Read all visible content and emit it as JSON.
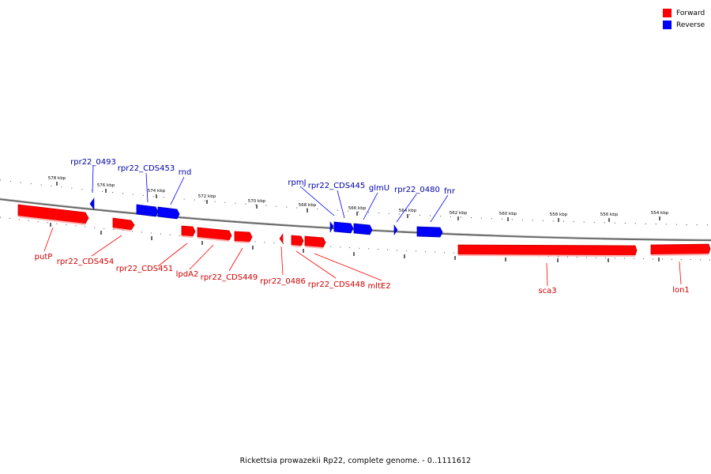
{
  "legend": {
    "items": [
      {
        "label": "Forward",
        "color": "#ff0000"
      },
      {
        "label": "Reverse",
        "color": "#0000ff"
      }
    ]
  },
  "footer": "Rickettsia prowazekii Rp22, complete genome. - 0..1111612",
  "colors": {
    "forward": "#ff0000",
    "forward_dark": "#c80000",
    "forward_shadow": "#ffb3b3",
    "reverse": "#0000ff",
    "reverse_dark": "#0000b0",
    "backbone": "#666666"
  },
  "scale_labels": [
    "578 kbp",
    "576 kbp",
    "574 kbp",
    "572 kbp",
    "570 kbp",
    "568 kbp",
    "566 kbp",
    "564 kbp",
    "562 kbp",
    "560 kbp",
    "558 kbp",
    "556 kbp",
    "554 kbp"
  ],
  "features": [
    {
      "name": "putP",
      "strand": "forward"
    },
    {
      "name": "rpr22_CDS454",
      "strand": "forward"
    },
    {
      "name": "rpr22_0493",
      "strand": "reverse"
    },
    {
      "name": "rpr22_CDS453",
      "strand": "reverse"
    },
    {
      "name": "rnd",
      "strand": "reverse"
    },
    {
      "name": "rpr22_CDS451",
      "strand": "forward"
    },
    {
      "name": "lpdA2",
      "strand": "forward"
    },
    {
      "name": "rpr22_CDS449",
      "strand": "forward"
    },
    {
      "name": "rpr22_0486",
      "strand": "forward"
    },
    {
      "name": "rpr22_CDS448",
      "strand": "forward"
    },
    {
      "name": "mltE2",
      "strand": "forward"
    },
    {
      "name": "rpmJ",
      "strand": "reverse"
    },
    {
      "name": "rpr22_CDS445",
      "strand": "reverse"
    },
    {
      "name": "glmU",
      "strand": "reverse"
    },
    {
      "name": "rpr22_0480",
      "strand": "reverse"
    },
    {
      "name": "fnr",
      "strand": "reverse"
    },
    {
      "name": "sca3",
      "strand": "forward"
    },
    {
      "name": "lon1",
      "strand": "forward"
    }
  ]
}
